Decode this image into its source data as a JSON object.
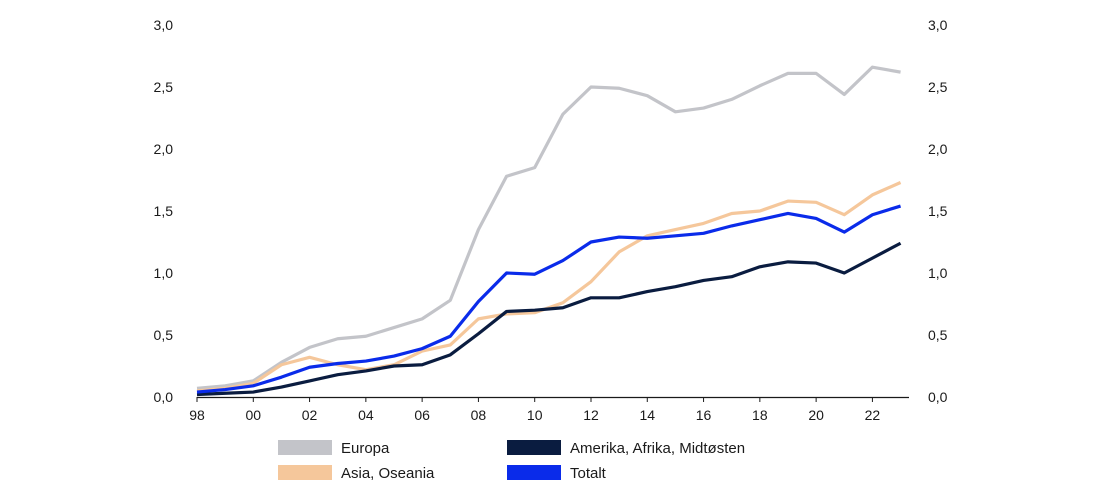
{
  "chart_data": {
    "type": "line",
    "title": "",
    "xlabel": "",
    "ylabel": "",
    "x": [
      1998,
      1999,
      2000,
      2001,
      2002,
      2003,
      2004,
      2005,
      2006,
      2007,
      2008,
      2009,
      2010,
      2011,
      2012,
      2013,
      2014,
      2015,
      2016,
      2017,
      2018,
      2019,
      2020,
      2021,
      2022,
      2023
    ],
    "xlim": [
      1998,
      2023.3
    ],
    "x_ticks": [
      1998,
      2000,
      2002,
      2004,
      2006,
      2008,
      2010,
      2012,
      2014,
      2016,
      2018,
      2020,
      2022
    ],
    "x_tick_labels": [
      "98",
      "00",
      "02",
      "04",
      "06",
      "08",
      "10",
      "12",
      "14",
      "16",
      "18",
      "20",
      "22"
    ],
    "ylim": [
      0,
      3.0
    ],
    "y_ticks": [
      0,
      0.5,
      1.0,
      1.5,
      2.0,
      2.5,
      3.0
    ],
    "y_tick_labels": [
      "0,0",
      "0,5",
      "1,0",
      "1,5",
      "2,0",
      "2,5",
      "3,0"
    ],
    "grid": false,
    "legend_position": "bottom",
    "series": [
      {
        "name": "Europa",
        "color": "#c3c4c9",
        "values": [
          0.07,
          0.09,
          0.13,
          0.28,
          0.4,
          0.47,
          0.49,
          0.56,
          0.63,
          0.78,
          1.35,
          1.78,
          1.85,
          2.28,
          2.5,
          2.49,
          2.43,
          2.3,
          2.33,
          2.4,
          2.51,
          2.61,
          2.61,
          2.44,
          2.66,
          2.62
        ]
      },
      {
        "name": "Asia, Oseania",
        "color": "#f5c79b",
        "values": [
          0.05,
          0.07,
          0.11,
          0.26,
          0.32,
          0.26,
          0.22,
          0.26,
          0.37,
          0.42,
          0.63,
          0.67,
          0.68,
          0.76,
          0.93,
          1.17,
          1.3,
          1.35,
          1.4,
          1.48,
          1.5,
          1.58,
          1.57,
          1.47,
          1.63,
          1.73
        ]
      },
      {
        "name": "Amerika, Afrika, Midtøsten",
        "color": "#0a1c40",
        "values": [
          0.02,
          0.03,
          0.04,
          0.08,
          0.13,
          0.18,
          0.21,
          0.25,
          0.26,
          0.34,
          0.51,
          0.69,
          0.7,
          0.72,
          0.8,
          0.8,
          0.85,
          0.89,
          0.94,
          0.97,
          1.05,
          1.09,
          1.08,
          1.0,
          1.12,
          1.24
        ]
      },
      {
        "name": "Totalt",
        "color": "#0a2bea",
        "values": [
          0.04,
          0.06,
          0.09,
          0.16,
          0.24,
          0.27,
          0.29,
          0.33,
          0.39,
          0.49,
          0.77,
          1.0,
          0.99,
          1.1,
          1.25,
          1.29,
          1.28,
          1.3,
          1.32,
          1.38,
          1.43,
          1.48,
          1.44,
          1.33,
          1.47,
          1.54
        ]
      }
    ]
  }
}
